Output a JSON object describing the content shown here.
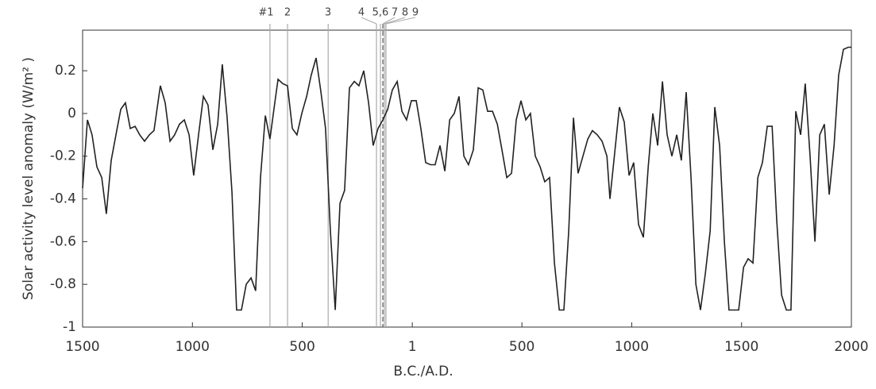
{
  "chart_data": {
    "type": "line",
    "y_label": "Solar activity level anomaly (W/m² )",
    "x_label": "B.C./A.D.",
    "x": [
      -1500,
      -1478,
      -1457,
      -1435,
      -1413,
      -1392,
      -1370,
      -1348,
      -1326,
      -1305,
      -1283,
      -1261,
      -1240,
      -1218,
      -1196,
      -1175,
      -1146,
      -1124,
      -1102,
      -1081,
      -1059,
      -1037,
      -1015,
      -994,
      -972,
      -950,
      -929,
      -907,
      -885,
      -864,
      -842,
      -820,
      -799,
      -777,
      -755,
      -733,
      -712,
      -690,
      -668,
      -647,
      -625,
      -610,
      -589,
      -567,
      -545,
      -524,
      -502,
      -480,
      -459,
      -437,
      -415,
      -394,
      -372,
      -350,
      -328,
      -307,
      -285,
      -263,
      -242,
      -220,
      -198,
      -177,
      -155,
      -133,
      -111,
      -90,
      -68,
      -46,
      -25,
      -3,
      19,
      40,
      62,
      84,
      105,
      127,
      149,
      171,
      192,
      214,
      236,
      257,
      279,
      301,
      322,
      344,
      366,
      388,
      409,
      431,
      453,
      474,
      496,
      518,
      539,
      561,
      583,
      604,
      626,
      648,
      670,
      691,
      713,
      735,
      756,
      778,
      800,
      821,
      843,
      865,
      887,
      901,
      923,
      944,
      966,
      988,
      1009,
      1031,
      1053,
      1075,
      1096,
      1118,
      1140,
      1161,
      1183,
      1205,
      1226,
      1248,
      1270,
      1292,
      1313,
      1335,
      1357,
      1378,
      1400,
      1422,
      1443,
      1465,
      1487,
      1509,
      1530,
      1552,
      1574,
      1595,
      1617,
      1639,
      1660,
      1682,
      1704,
      1725,
      1747,
      1769,
      1790,
      1812,
      1834,
      1856,
      1877,
      1899,
      1921,
      1942,
      1964,
      1986,
      2000
    ],
    "series": [
      {
        "color": "#222222",
        "values": [
          -0.35,
          -0.03,
          -0.1,
          -0.25,
          -0.3,
          -0.47,
          -0.22,
          -0.1,
          0.02,
          0.05,
          -0.07,
          -0.06,
          -0.1,
          -0.13,
          -0.1,
          -0.08,
          0.13,
          0.05,
          -0.13,
          -0.1,
          -0.05,
          -0.03,
          -0.1,
          -0.29,
          -0.1,
          0.08,
          0.04,
          -0.17,
          -0.05,
          0.23,
          -0.02,
          -0.37,
          -0.92,
          -0.92,
          -0.8,
          -0.77,
          -0.83,
          -0.3,
          -0.01,
          -0.12,
          0.05,
          0.16,
          0.14,
          0.13,
          -0.07,
          -0.1,
          0,
          0.08,
          0.18,
          0.26,
          0.1,
          -0.07,
          -0.55,
          -0.92,
          -0.42,
          -0.36,
          0.12,
          0.15,
          0.13,
          0.2,
          0.05,
          -0.15,
          -0.07,
          -0.03,
          0.02,
          0.11,
          0.15,
          0.01,
          -0.03,
          0.06,
          0.06,
          -0.07,
          -0.23,
          -0.24,
          -0.24,
          -0.15,
          -0.27,
          -0.03,
          0,
          0.08,
          -0.2,
          -0.24,
          -0.17,
          0.12,
          0.11,
          0.01,
          0.01,
          -0.05,
          -0.17,
          -0.3,
          -0.28,
          -0.03,
          0.06,
          -0.03,
          0,
          -0.2,
          -0.25,
          -0.32,
          -0.3,
          -0.7,
          -0.92,
          -0.92,
          -0.55,
          -0.02,
          -0.28,
          -0.2,
          -0.12,
          -0.08,
          -0.1,
          -0.13,
          -0.2,
          -0.4,
          -0.18,
          0.03,
          -0.04,
          -0.29,
          -0.23,
          -0.52,
          -0.58,
          -0.25,
          0,
          -0.15,
          0.15,
          -0.1,
          -0.2,
          -0.1,
          -0.22,
          0.1,
          -0.3,
          -0.8,
          -0.92,
          -0.75,
          -0.55,
          0.03,
          -0.15,
          -0.6,
          -0.92,
          -0.92,
          -0.92,
          -0.72,
          -0.68,
          -0.7,
          -0.3,
          -0.23,
          -0.06,
          -0.06,
          -0.5,
          -0.85,
          -0.92,
          -0.92,
          0.01,
          -0.1,
          0.14,
          -0.2,
          -0.6,
          -0.1,
          -0.05,
          -0.38,
          -0.15,
          0.18,
          0.3,
          0.31,
          0.31
        ]
      }
    ],
    "xlim": [
      -1500,
      2000
    ],
    "xticks": [
      {
        "value": -1500,
        "label": "1500"
      },
      {
        "value": -1000,
        "label": "1000"
      },
      {
        "value": -500,
        "label": "500"
      },
      1,
      {
        "value": 500,
        "label": "500"
      },
      {
        "value": 1000,
        "label": "1000"
      },
      {
        "value": 1500,
        "label": "1500"
      },
      {
        "value": 2000,
        "label": "2000"
      }
    ],
    "ylim": [
      -1,
      0.39
    ],
    "yticks": [
      -1,
      -0.8,
      -0.6,
      -0.4,
      -0.2,
      0,
      0.2
    ],
    "events": [
      {
        "label": "#1",
        "x": -647
      },
      {
        "label": "2",
        "x": -567
      },
      {
        "label": "3",
        "x": -382
      },
      {
        "label": "4",
        "x": -162
      },
      {
        "label": "5,6",
        "x": -144
      },
      {
        "label": "7",
        "x": -133
      },
      {
        "label": "8",
        "x": -126
      },
      {
        "label": "9",
        "x": -119
      }
    ]
  }
}
